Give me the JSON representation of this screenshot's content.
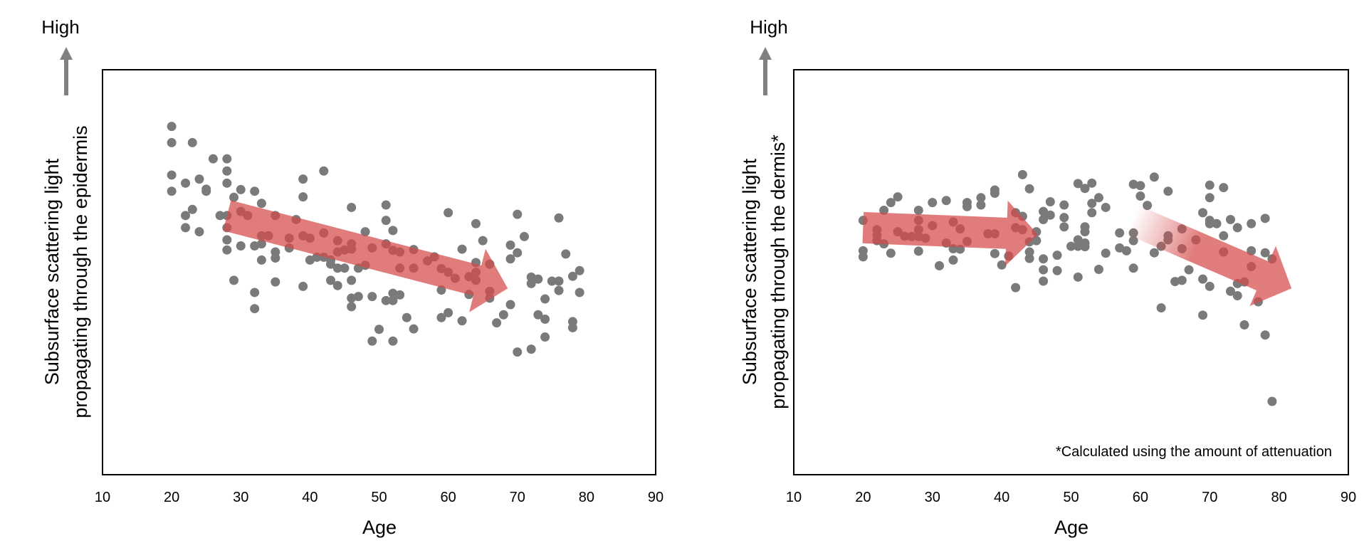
{
  "colors": {
    "dot": "#7a7a7a",
    "arrow": "#d64a4a",
    "high_arrow": "#808080",
    "frame": "#000000"
  },
  "chart_data": [
    {
      "type": "scatter",
      "title": "",
      "high_label": "High",
      "xlabel": "Age",
      "ylabel_lines": [
        "Subsurface scattering light",
        "propagating through the epidermis"
      ],
      "xlim": [
        10,
        90
      ],
      "ylim": [
        0,
        100
      ],
      "xticks": [
        10,
        20,
        30,
        40,
        50,
        60,
        70,
        80,
        90
      ],
      "y_units": "relative (no ticks)",
      "grid": false,
      "footnote": "",
      "trend_arrows": [
        {
          "from": [
            28,
            64
          ],
          "to": [
            68.6,
            46
          ],
          "fade": false
        }
      ],
      "points": [
        [
          20,
          86
        ],
        [
          20,
          82
        ],
        [
          20,
          74
        ],
        [
          20,
          70
        ],
        [
          23,
          82
        ],
        [
          23,
          65.5
        ],
        [
          22,
          72
        ],
        [
          22,
          64
        ],
        [
          22,
          61
        ],
        [
          24,
          73
        ],
        [
          24,
          60
        ],
        [
          25,
          70.5
        ],
        [
          25,
          70
        ],
        [
          26,
          78
        ],
        [
          27,
          64
        ],
        [
          28,
          78
        ],
        [
          28,
          75
        ],
        [
          28,
          72
        ],
        [
          28,
          64
        ],
        [
          28,
          61
        ],
        [
          28,
          58
        ],
        [
          28,
          55.5
        ],
        [
          29,
          68.5
        ],
        [
          29,
          48
        ],
        [
          30,
          70.4
        ],
        [
          30,
          65
        ],
        [
          30,
          56.5
        ],
        [
          31,
          64
        ],
        [
          32,
          70
        ],
        [
          32,
          56.5
        ],
        [
          32,
          45
        ],
        [
          32,
          41
        ],
        [
          33,
          67
        ],
        [
          33,
          59
        ],
        [
          33,
          57
        ],
        [
          33,
          53
        ],
        [
          34,
          59
        ],
        [
          35,
          64
        ],
        [
          35,
          55
        ],
        [
          35,
          53.5
        ],
        [
          35,
          47.6
        ],
        [
          37,
          58.4
        ],
        [
          37,
          56
        ],
        [
          38,
          63
        ],
        [
          39,
          73
        ],
        [
          39,
          68.6
        ],
        [
          39,
          59
        ],
        [
          39,
          46.5
        ],
        [
          40,
          58.4
        ],
        [
          40,
          53
        ],
        [
          41,
          53.7
        ],
        [
          42,
          75
        ],
        [
          42,
          59.7
        ],
        [
          42,
          53.7
        ],
        [
          43,
          53
        ],
        [
          43,
          52
        ],
        [
          43,
          48
        ],
        [
          44,
          57.8
        ],
        [
          44,
          55
        ],
        [
          44,
          51
        ],
        [
          44,
          46.7
        ],
        [
          45,
          55.5
        ],
        [
          45,
          51
        ],
        [
          46,
          66
        ],
        [
          46,
          57
        ],
        [
          46,
          55.7
        ],
        [
          46,
          48
        ],
        [
          46,
          43.6
        ],
        [
          46,
          41.5
        ],
        [
          47,
          51
        ],
        [
          47,
          44
        ],
        [
          48,
          60
        ],
        [
          48,
          51.7
        ],
        [
          49,
          56
        ],
        [
          49,
          44
        ],
        [
          49,
          33
        ],
        [
          50,
          35.9
        ],
        [
          51,
          66.6
        ],
        [
          51,
          62.8
        ],
        [
          51,
          57
        ],
        [
          51,
          43
        ],
        [
          52,
          60.3
        ],
        [
          52,
          55.4
        ],
        [
          52,
          44.8
        ],
        [
          52,
          43
        ],
        [
          52,
          33
        ],
        [
          53,
          55
        ],
        [
          53,
          51
        ],
        [
          53,
          44.4
        ],
        [
          54,
          38.8
        ],
        [
          55,
          55.6
        ],
        [
          55,
          51
        ],
        [
          55,
          36
        ],
        [
          57,
          52.8
        ],
        [
          58,
          53.8
        ],
        [
          59,
          50.9
        ],
        [
          59,
          45.6
        ],
        [
          59,
          38.8
        ],
        [
          60,
          64.7
        ],
        [
          60,
          50
        ],
        [
          60,
          40
        ],
        [
          61,
          48.5
        ],
        [
          62,
          55.7
        ],
        [
          62,
          38
        ],
        [
          63,
          48.9
        ],
        [
          63,
          44.5
        ],
        [
          64,
          62
        ],
        [
          64,
          52.4
        ],
        [
          64,
          50
        ],
        [
          64,
          48
        ],
        [
          65,
          57.8
        ],
        [
          66,
          52
        ],
        [
          66,
          45.3
        ],
        [
          66,
          43.6
        ],
        [
          67,
          37.5
        ],
        [
          68,
          39.5
        ],
        [
          69,
          56.7
        ],
        [
          69,
          53.3
        ],
        [
          69,
          42
        ],
        [
          70,
          64.3
        ],
        [
          70,
          54.8
        ],
        [
          70,
          30.3
        ],
        [
          71,
          58.8
        ],
        [
          72,
          48.8
        ],
        [
          72,
          47.2
        ],
        [
          72,
          31
        ],
        [
          73,
          48.3
        ],
        [
          73,
          39.5
        ],
        [
          74,
          43.4
        ],
        [
          74,
          38.4
        ],
        [
          74,
          34
        ],
        [
          75,
          47.8
        ],
        [
          76,
          63.4
        ],
        [
          76,
          47.8
        ],
        [
          76,
          45.5
        ],
        [
          77,
          54.5
        ],
        [
          78,
          49
        ],
        [
          78,
          37.8
        ],
        [
          78,
          36.3
        ],
        [
          79,
          50.4
        ],
        [
          79,
          45
        ]
      ]
    },
    {
      "type": "scatter",
      "title": "",
      "high_label": "High",
      "xlabel": "Age",
      "ylabel_lines": [
        "Subsurface scattering light",
        "propagating through the dermis*"
      ],
      "xlim": [
        10,
        90
      ],
      "ylim": [
        0,
        100
      ],
      "xticks": [
        10,
        20,
        30,
        40,
        50,
        60,
        70,
        80,
        90
      ],
      "y_units": "relative (no ticks)",
      "grid": false,
      "footnote": "*Calculated using the amount of attenuation",
      "trend_arrows": [
        {
          "from": [
            20,
            61
          ],
          "to": [
            45.2,
            59.3
          ],
          "fade": false
        },
        {
          "from": [
            58.8,
            63
          ],
          "to": [
            81.8,
            46
          ],
          "fade": true
        }
      ],
      "points": [
        [
          20,
          62.8
        ],
        [
          20,
          55.3
        ],
        [
          20,
          53.8
        ],
        [
          22,
          60.5
        ],
        [
          22,
          59.1
        ],
        [
          22,
          57.8
        ],
        [
          23,
          65.3
        ],
        [
          23,
          57
        ],
        [
          24,
          67.2
        ],
        [
          24,
          54.7
        ],
        [
          25,
          68.6
        ],
        [
          25,
          60
        ],
        [
          26,
          58.9
        ],
        [
          27,
          58.8
        ],
        [
          28,
          65.3
        ],
        [
          28,
          62.8
        ],
        [
          28,
          60.5
        ],
        [
          28,
          58.8
        ],
        [
          28,
          55.2
        ],
        [
          29,
          58.4
        ],
        [
          30,
          67.2
        ],
        [
          30,
          61.5
        ],
        [
          31,
          51.6
        ],
        [
          32,
          67.7
        ],
        [
          32,
          57.2
        ],
        [
          33,
          62.4
        ],
        [
          33,
          55.8
        ],
        [
          33,
          53
        ],
        [
          34,
          60.7
        ],
        [
          34,
          55.7
        ],
        [
          35,
          67.2
        ],
        [
          35,
          66.2
        ],
        [
          35,
          57.6
        ],
        [
          37,
          68.4
        ],
        [
          37,
          66.6
        ],
        [
          38,
          59.5
        ],
        [
          39,
          70.3
        ],
        [
          39,
          69.5
        ],
        [
          39,
          59.5
        ],
        [
          39,
          54.6
        ],
        [
          40,
          51.8
        ],
        [
          41,
          54
        ],
        [
          42,
          64.7
        ],
        [
          42,
          61
        ],
        [
          42,
          46.2
        ],
        [
          43,
          74.1
        ],
        [
          43,
          63.8
        ],
        [
          43,
          60.5
        ],
        [
          44,
          70.6
        ],
        [
          44,
          57.5
        ],
        [
          44,
          55
        ],
        [
          44,
          53.4
        ],
        [
          45,
          60
        ],
        [
          45,
          57.8
        ],
        [
          46,
          65
        ],
        [
          46,
          63
        ],
        [
          46,
          53.3
        ],
        [
          46,
          50.6
        ],
        [
          46,
          47.8
        ],
        [
          47,
          67.4
        ],
        [
          47,
          64.1
        ],
        [
          48,
          54.2
        ],
        [
          48,
          50.4
        ],
        [
          49,
          66.6
        ],
        [
          49,
          63.5
        ],
        [
          49,
          61.2
        ],
        [
          50,
          56.4
        ],
        [
          51,
          71.9
        ],
        [
          51,
          58
        ],
        [
          51,
          56.4
        ],
        [
          51,
          48.8
        ],
        [
          52,
          70.7
        ],
        [
          52,
          61.2
        ],
        [
          52,
          60
        ],
        [
          52,
          57.2
        ],
        [
          52,
          56.3
        ],
        [
          53,
          72
        ],
        [
          53,
          67
        ],
        [
          53,
          64.7
        ],
        [
          54,
          68.4
        ],
        [
          54,
          50.7
        ],
        [
          55,
          66
        ],
        [
          55,
          54.7
        ],
        [
          57,
          59.7
        ],
        [
          57,
          56
        ],
        [
          58,
          55.3
        ],
        [
          59,
          71.7
        ],
        [
          59,
          59.7
        ],
        [
          59,
          57.8
        ],
        [
          59,
          51
        ],
        [
          60,
          71.4
        ],
        [
          60,
          68.8
        ],
        [
          61,
          66.5
        ],
        [
          62,
          73.5
        ],
        [
          62,
          54.8
        ],
        [
          63,
          56.4
        ],
        [
          63,
          41.2
        ],
        [
          64,
          70
        ],
        [
          64,
          59
        ],
        [
          64,
          58
        ],
        [
          65,
          47.7
        ],
        [
          66,
          60.7
        ],
        [
          66,
          55.8
        ],
        [
          66,
          48
        ],
        [
          67,
          50.6
        ],
        [
          68,
          58
        ],
        [
          69,
          64.7
        ],
        [
          69,
          48.3
        ],
        [
          69,
          39.4
        ],
        [
          70,
          71.5
        ],
        [
          70,
          68.4
        ],
        [
          70,
          62.8
        ],
        [
          70,
          62
        ],
        [
          70,
          46.5
        ],
        [
          71,
          62
        ],
        [
          72,
          70.9
        ],
        [
          72,
          59
        ],
        [
          72,
          55
        ],
        [
          73,
          63
        ],
        [
          73,
          45.3
        ],
        [
          74,
          61
        ],
        [
          74,
          47.2
        ],
        [
          74,
          44.2
        ],
        [
          75,
          47.6
        ],
        [
          75,
          37
        ],
        [
          76,
          62
        ],
        [
          76,
          55.3
        ],
        [
          76,
          51.4
        ],
        [
          77,
          42.7
        ],
        [
          78,
          63.3
        ],
        [
          78,
          54.8
        ],
        [
          78,
          34.5
        ],
        [
          79,
          53.3
        ],
        [
          79,
          18.1
        ]
      ]
    }
  ]
}
